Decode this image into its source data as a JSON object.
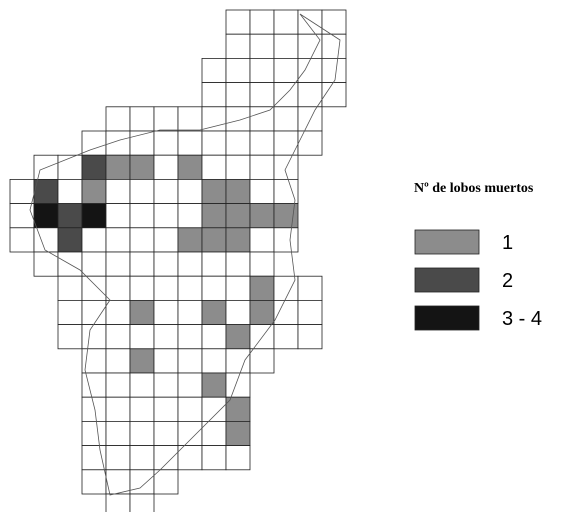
{
  "legend": {
    "title": "Nº de lobos muertos",
    "entries": [
      {
        "label": "1",
        "color": "#8c8c8c"
      },
      {
        "label": "2",
        "color": "#4a4a4a"
      },
      {
        "label": "3 - 4",
        "color": "#141414"
      }
    ]
  }
}
